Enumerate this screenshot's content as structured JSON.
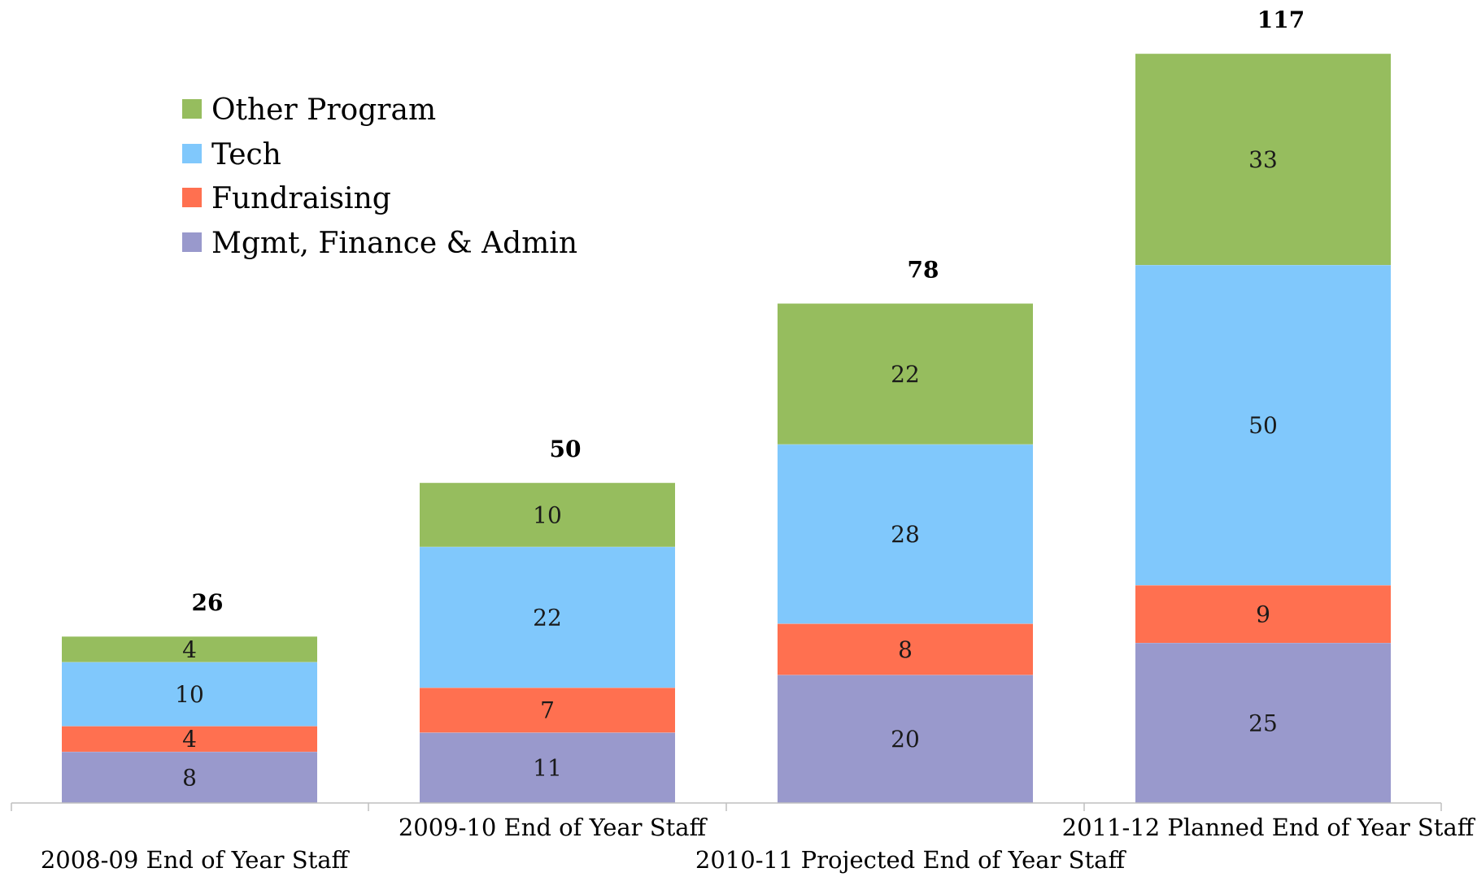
{
  "chart_data": {
    "type": "bar",
    "stacked": true,
    "categories": [
      "2008-09 End of Year Staff",
      "2009-10 End of Year Staff",
      "2010-11 Projected End of Year Staff",
      "2011-12 Planned End of Year Staff"
    ],
    "series": [
      {
        "name": "Mgmt, Finance & Admin",
        "color": "#9999CC",
        "values": [
          8,
          11,
          20,
          25
        ]
      },
      {
        "name": "Fundraising",
        "color": "#FF7050",
        "values": [
          4,
          7,
          8,
          9
        ]
      },
      {
        "name": "Tech",
        "color": "#80C8FC",
        "values": [
          10,
          22,
          28,
          50
        ]
      },
      {
        "name": "Other Program",
        "color": "#96BD5E",
        "values": [
          4,
          10,
          22,
          33
        ]
      }
    ],
    "totals": [
      "26",
      "50",
      "78",
      "117"
    ],
    "legend_order": [
      "Other Program",
      "Tech",
      "Fundraising",
      "Mgmt, Finance & Admin"
    ],
    "legend_position": "top-left",
    "ylim": [
      0,
      117
    ],
    "grid": false,
    "title": "",
    "xlabel": "",
    "ylabel": ""
  }
}
